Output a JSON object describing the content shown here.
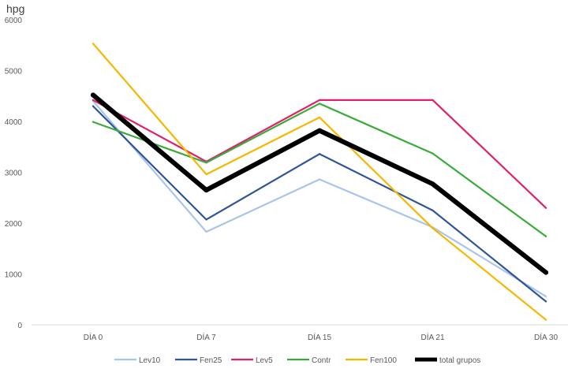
{
  "chart_data": {
    "type": "line",
    "ylabel": "hpg",
    "xlabel": "",
    "title": "",
    "categories": [
      "DÍA 0",
      "DÍA 7",
      "DÍA 15",
      "DÍA 21",
      "DÍA 30"
    ],
    "ylim": [
      0,
      6000
    ],
    "yticks": [
      0,
      1000,
      2000,
      3000,
      4000,
      5000,
      6000
    ],
    "grid": false,
    "legend_position": "bottom",
    "series": [
      {
        "name": "Lev10",
        "color": "#a9c4eb",
        "values": [
          4400,
          1830,
          2860,
          1920,
          560
        ]
      },
      {
        "name": "Fen25",
        "color": "#2f5597",
        "values": [
          4300,
          2070,
          3360,
          2250,
          460
        ]
      },
      {
        "name": "Lev5",
        "color": "#e0206d",
        "values": [
          4420,
          3210,
          4420,
          4420,
          2300
        ]
      },
      {
        "name": "Contr",
        "color": "#3aab3a",
        "values": [
          3990,
          3190,
          4350,
          3370,
          1740
        ]
      },
      {
        "name": "Fen100",
        "color": "#f5b700",
        "values": [
          5530,
          2960,
          4080,
          1900,
          100
        ]
      },
      {
        "name": "total grupos",
        "color": "#000000",
        "values": [
          4520,
          2650,
          3820,
          2770,
          1030
        ],
        "bold": true
      }
    ]
  }
}
